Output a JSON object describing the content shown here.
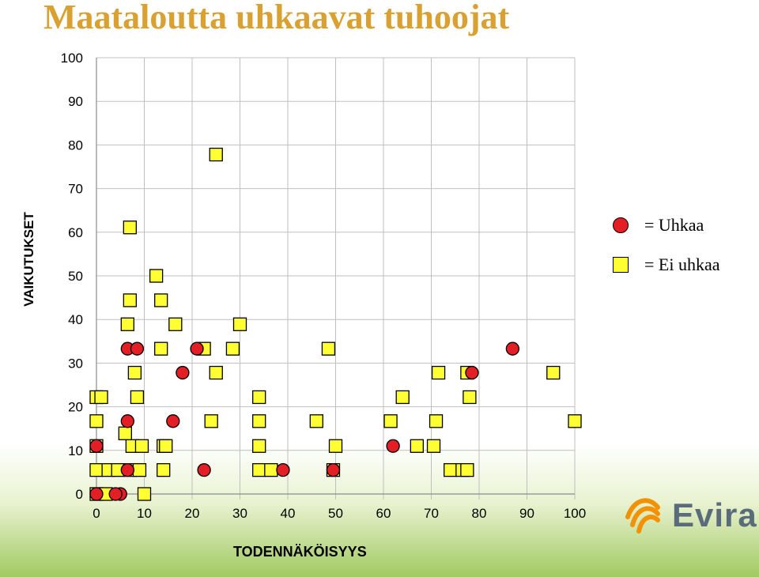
{
  "chart_data": {
    "type": "scatter",
    "title": "Maataloutta uhkaavat tuhoojat",
    "xlabel": "TODENNÄKÖISYYS",
    "ylabel": "VAIKUTUKSET",
    "xlim": [
      0,
      100
    ],
    "ylim": [
      0,
      100
    ],
    "xticks": [
      0,
      10,
      20,
      30,
      40,
      50,
      60,
      70,
      80,
      90,
      100
    ],
    "yticks": [
      0,
      10,
      20,
      30,
      40,
      50,
      60,
      70,
      80,
      90,
      100
    ],
    "grid": true,
    "legend_position": "right",
    "series": [
      {
        "name": "Uhkaa",
        "marker": "circle",
        "color": "#E31E24",
        "points": [
          [
            0,
            0
          ],
          [
            5,
            0
          ],
          [
            4,
            0
          ],
          [
            0,
            11
          ],
          [
            6.5,
            5.5
          ],
          [
            6.5,
            16.7
          ],
          [
            6.5,
            33.3
          ],
          [
            8.5,
            33.3
          ],
          [
            16,
            16.7
          ],
          [
            18,
            27.8
          ],
          [
            21,
            33.3
          ],
          [
            22.5,
            5.5
          ],
          [
            39,
            5.5
          ],
          [
            49.5,
            5.5
          ],
          [
            62,
            11
          ],
          [
            78.5,
            27.8
          ],
          [
            87,
            33.3
          ]
        ]
      },
      {
        "name": "Ei uhkaa",
        "marker": "square",
        "color": "#FFFF33",
        "points": [
          [
            0,
            0
          ],
          [
            2,
            0
          ],
          [
            10,
            0
          ],
          [
            0,
            5.5
          ],
          [
            2.5,
            5.5
          ],
          [
            4.5,
            5.5
          ],
          [
            7,
            5.5
          ],
          [
            9,
            5.5
          ],
          [
            14,
            5.5
          ],
          [
            34,
            5.5
          ],
          [
            36.5,
            5.5
          ],
          [
            49.5,
            5.5
          ],
          [
            74,
            5.5
          ],
          [
            76.5,
            5.5
          ],
          [
            77.5,
            5.5
          ],
          [
            0,
            11
          ],
          [
            7.5,
            11
          ],
          [
            9.5,
            11
          ],
          [
            14,
            11
          ],
          [
            14.5,
            11
          ],
          [
            34,
            11
          ],
          [
            50,
            11
          ],
          [
            67,
            11
          ],
          [
            70.5,
            11
          ],
          [
            6,
            13.9
          ],
          [
            0,
            16.7
          ],
          [
            24,
            16.7
          ],
          [
            34,
            16.7
          ],
          [
            46,
            16.7
          ],
          [
            61.5,
            16.7
          ],
          [
            71,
            16.7
          ],
          [
            100,
            16.7
          ],
          [
            0,
            22.2
          ],
          [
            1,
            22.2
          ],
          [
            8.5,
            22.2
          ],
          [
            34,
            22.2
          ],
          [
            64,
            22.2
          ],
          [
            78,
            22.2
          ],
          [
            8,
            27.8
          ],
          [
            25,
            27.8
          ],
          [
            71.5,
            27.8
          ],
          [
            77.5,
            27.8
          ],
          [
            95.5,
            27.8
          ],
          [
            13.5,
            33.3
          ],
          [
            22.5,
            33.3
          ],
          [
            28.5,
            33.3
          ],
          [
            48.5,
            33.3
          ],
          [
            6.5,
            38.9
          ],
          [
            16.5,
            38.9
          ],
          [
            30,
            38.9
          ],
          [
            7,
            44.4
          ],
          [
            13.5,
            44.4
          ],
          [
            12.5,
            50
          ],
          [
            7,
            61.1
          ],
          [
            25,
            77.8
          ]
        ]
      }
    ]
  },
  "legend": {
    "items": [
      {
        "text": "= Uhkaa"
      },
      {
        "text": "= Ei uhkaa"
      }
    ]
  },
  "logo": {
    "text": "Evira"
  }
}
